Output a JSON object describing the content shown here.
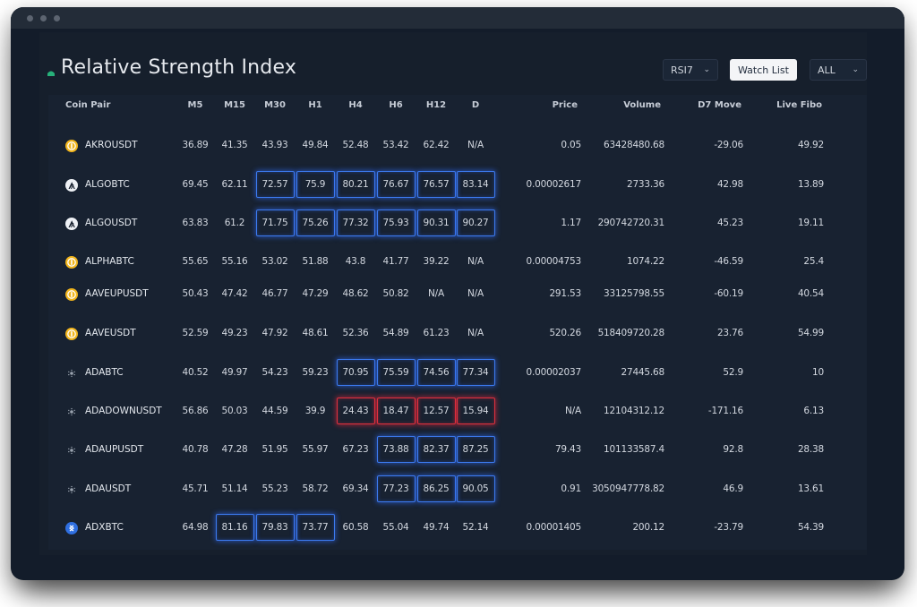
{
  "app": {
    "title": "Relative Strength Index"
  },
  "controls": {
    "indicator_select": "RSI7",
    "watchlist_button": "Watch List",
    "filter_select": "ALL"
  },
  "colors": {
    "highlight_overbought": "#3c7bf0",
    "highlight_oversold": "#e0303e",
    "background": "#131c2a"
  },
  "columns": [
    "Coin Pair",
    "M5",
    "M15",
    "M30",
    "H1",
    "H4",
    "H6",
    "H12",
    "D",
    "Price",
    "Volume",
    "D7 Move",
    "Live Fibo"
  ],
  "rows": [
    {
      "pair": "AKROUSDT",
      "icon": "akro-coin-icon",
      "rsi": [
        "36.89",
        "41.35",
        "43.93",
        "49.84",
        "52.48",
        "53.42",
        "62.42",
        "N/A"
      ],
      "hl": [
        "",
        "",
        "",
        "",
        "",
        "",
        "",
        ""
      ],
      "price": "0.05",
      "volume": "63428480.68",
      "d7": "-29.06",
      "fibo": "49.92"
    },
    {
      "pair": "ALGOBTC",
      "icon": "algorand-icon",
      "rsi": [
        "69.45",
        "62.11",
        "72.57",
        "75.9",
        "80.21",
        "76.67",
        "76.57",
        "83.14"
      ],
      "hl": [
        "",
        "",
        "blue",
        "blue",
        "blue",
        "blue",
        "blue",
        "blue"
      ],
      "price": "0.00002617",
      "volume": "2733.36",
      "d7": "42.98",
      "fibo": "13.89"
    },
    {
      "pair": "ALGOUSDT",
      "icon": "algorand-icon",
      "rsi": [
        "63.83",
        "61.2",
        "71.75",
        "75.26",
        "77.32",
        "75.93",
        "90.31",
        "90.27"
      ],
      "hl": [
        "",
        "",
        "blue",
        "blue",
        "blue",
        "blue",
        "blue",
        "blue"
      ],
      "price": "1.17",
      "volume": "290742720.31",
      "d7": "45.23",
      "fibo": "19.11"
    },
    {
      "pair": "ALPHABTC",
      "icon": "alpha-coin-icon",
      "rsi": [
        "55.65",
        "55.16",
        "53.02",
        "51.88",
        "43.8",
        "41.77",
        "39.22",
        "N/A"
      ],
      "hl": [
        "",
        "",
        "",
        "",
        "",
        "",
        "",
        ""
      ],
      "price": "0.00004753",
      "volume": "1074.22",
      "d7": "-46.59",
      "fibo": "25.4"
    },
    {
      "pair": "AAVEUPUSDT",
      "icon": "aaveup-coin-icon",
      "rsi": [
        "50.43",
        "47.42",
        "46.77",
        "47.29",
        "48.62",
        "50.82",
        "N/A",
        "N/A"
      ],
      "hl": [
        "",
        "",
        "",
        "",
        "",
        "",
        "",
        ""
      ],
      "price": "291.53",
      "volume": "33125798.55",
      "d7": "-60.19",
      "fibo": "40.54"
    },
    {
      "pair": "AAVEUSDT",
      "icon": "aave-coin-icon",
      "rsi": [
        "52.59",
        "49.23",
        "47.92",
        "48.61",
        "52.36",
        "54.89",
        "61.23",
        "N/A"
      ],
      "hl": [
        "",
        "",
        "",
        "",
        "",
        "",
        "",
        ""
      ],
      "price": "520.26",
      "volume": "518409720.28",
      "d7": "23.76",
      "fibo": "54.99"
    },
    {
      "pair": "ADABTC",
      "icon": "cardano-icon",
      "rsi": [
        "40.52",
        "49.97",
        "54.23",
        "59.23",
        "70.95",
        "75.59",
        "74.56",
        "77.34"
      ],
      "hl": [
        "",
        "",
        "",
        "",
        "blue",
        "blue",
        "blue",
        "blue"
      ],
      "price": "0.00002037",
      "volume": "27445.68",
      "d7": "52.9",
      "fibo": "10"
    },
    {
      "pair": "ADADOWNUSDT",
      "icon": "cardano-icon",
      "rsi": [
        "56.86",
        "50.03",
        "44.59",
        "39.9",
        "24.43",
        "18.47",
        "12.57",
        "15.94"
      ],
      "hl": [
        "",
        "",
        "",
        "",
        "red",
        "red",
        "red",
        "red"
      ],
      "price": "N/A",
      "volume": "12104312.12",
      "d7": "-171.16",
      "fibo": "6.13"
    },
    {
      "pair": "ADAUPUSDT",
      "icon": "cardano-icon",
      "rsi": [
        "40.78",
        "47.28",
        "51.95",
        "55.97",
        "67.23",
        "73.88",
        "82.37",
        "87.25"
      ],
      "hl": [
        "",
        "",
        "",
        "",
        "",
        "blue",
        "blue",
        "blue"
      ],
      "price": "79.43",
      "volume": "101133587.4",
      "d7": "92.8",
      "fibo": "28.38"
    },
    {
      "pair": "ADAUSDT",
      "icon": "cardano-icon",
      "rsi": [
        "45.71",
        "51.14",
        "55.23",
        "58.72",
        "69.34",
        "77.23",
        "86.25",
        "90.05"
      ],
      "hl": [
        "",
        "",
        "",
        "",
        "",
        "blue",
        "blue",
        "blue"
      ],
      "price": "0.91",
      "volume": "3050947778.82",
      "d7": "46.9",
      "fibo": "13.61"
    },
    {
      "pair": "ADXBTC",
      "icon": "adx-coin-icon",
      "rsi": [
        "64.98",
        "81.16",
        "79.83",
        "73.77",
        "60.58",
        "55.04",
        "49.74",
        "52.14"
      ],
      "hl": [
        "",
        "blue",
        "blue",
        "blue",
        "",
        "",
        "",
        ""
      ],
      "price": "0.00001405",
      "volume": "200.12",
      "d7": "-23.79",
      "fibo": "54.39"
    }
  ]
}
